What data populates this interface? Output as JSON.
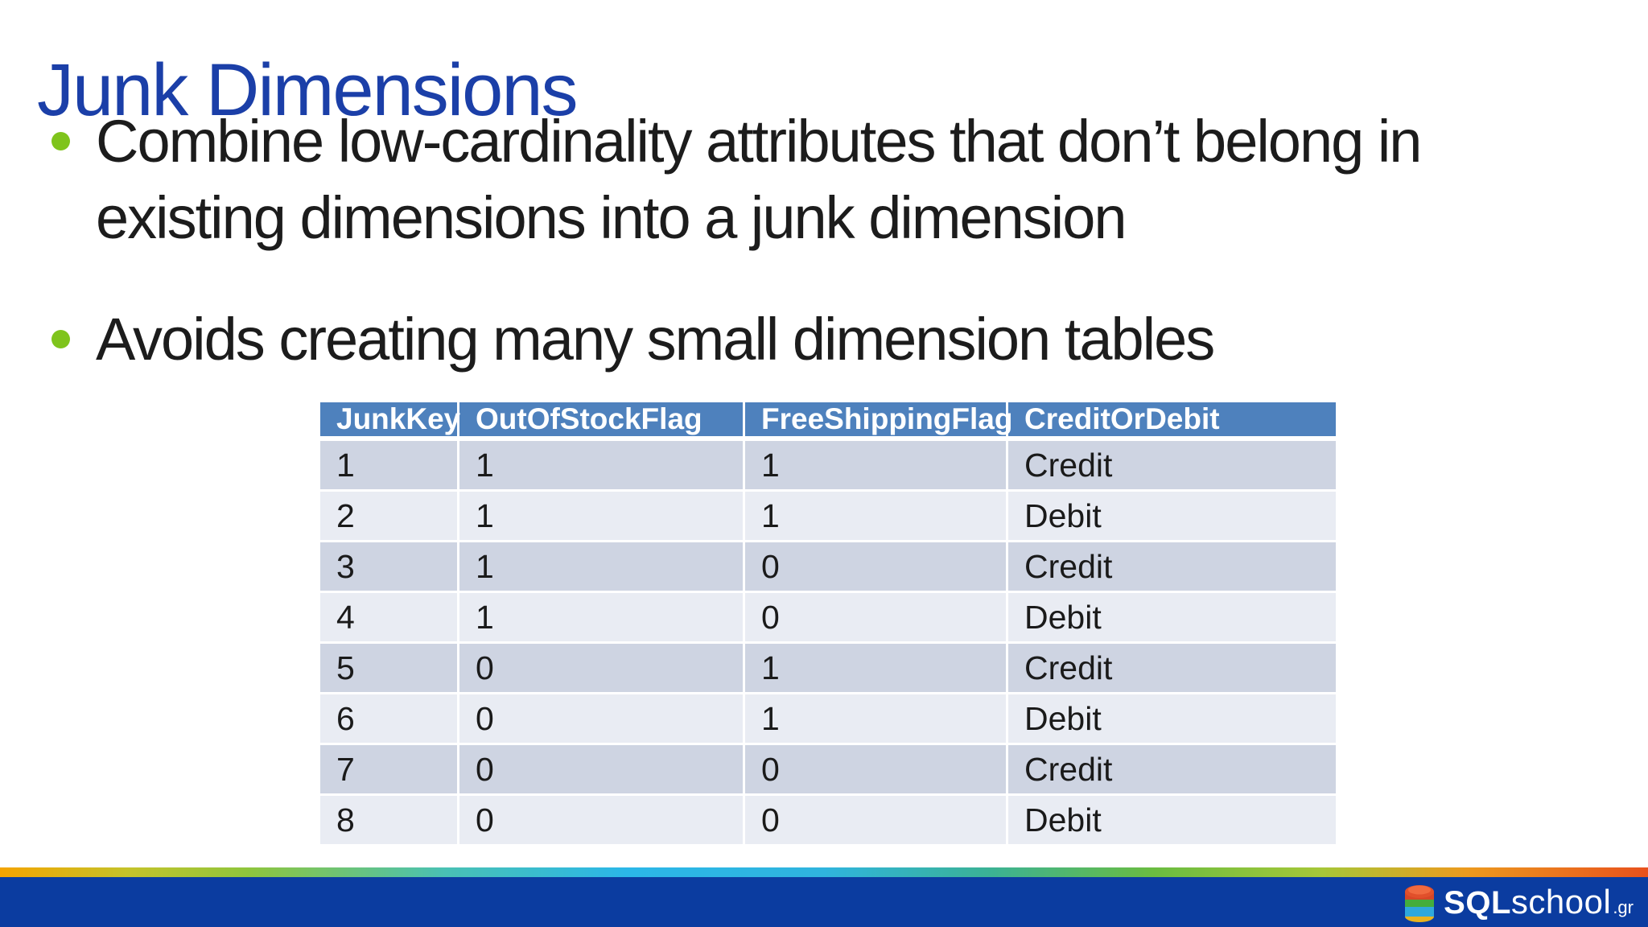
{
  "slide": {
    "title": "Junk Dimensions",
    "bullets": [
      {
        "line1": "Combine low-cardinality attributes that don’t belong in",
        "line2": "existing dimensions into a junk dimension"
      },
      {
        "line1": "Avoids creating many small dimension tables",
        "line2": ""
      }
    ]
  },
  "table": {
    "columns": [
      "JunkKey",
      "OutOfStockFlag",
      "FreeShippingFlag",
      "CreditOrDebit"
    ],
    "rows": [
      [
        "1",
        "1",
        "1",
        "Credit"
      ],
      [
        "2",
        "1",
        "1",
        "Debit"
      ],
      [
        "3",
        "1",
        "0",
        "Credit"
      ],
      [
        "4",
        "1",
        "0",
        "Debit"
      ],
      [
        "5",
        "0",
        "1",
        "Credit"
      ],
      [
        "6",
        "0",
        "1",
        "Debit"
      ],
      [
        "7",
        "0",
        "0",
        "Credit"
      ],
      [
        "8",
        "0",
        "0",
        "Debit"
      ]
    ]
  },
  "footer": {
    "logo": {
      "sql": "SQL",
      "school": "school",
      "tld": ".gr"
    }
  },
  "colors": {
    "title_blue": "#1B3FA8",
    "bullet_green": "#7FC41C",
    "table_header_bg": "#4E81BD",
    "table_header_text": "#FFFFFF",
    "row_dark": "#CED4E2",
    "row_light": "#E9ECF3",
    "body_text": "#1C1C1C",
    "footer_bar_blue": "#0B3CA0",
    "footer_gradient": [
      "#F4A400",
      "#8FC53C",
      "#2BB7E8",
      "#3BB295",
      "#6ABC41",
      "#EC9A1E",
      "#E8511D"
    ],
    "logo_disk_red": "#E1502B",
    "logo_disk_green": "#44AD3C",
    "logo_disk_blue": "#2FA8DC",
    "logo_disk_yellow": "#E9B31F"
  }
}
